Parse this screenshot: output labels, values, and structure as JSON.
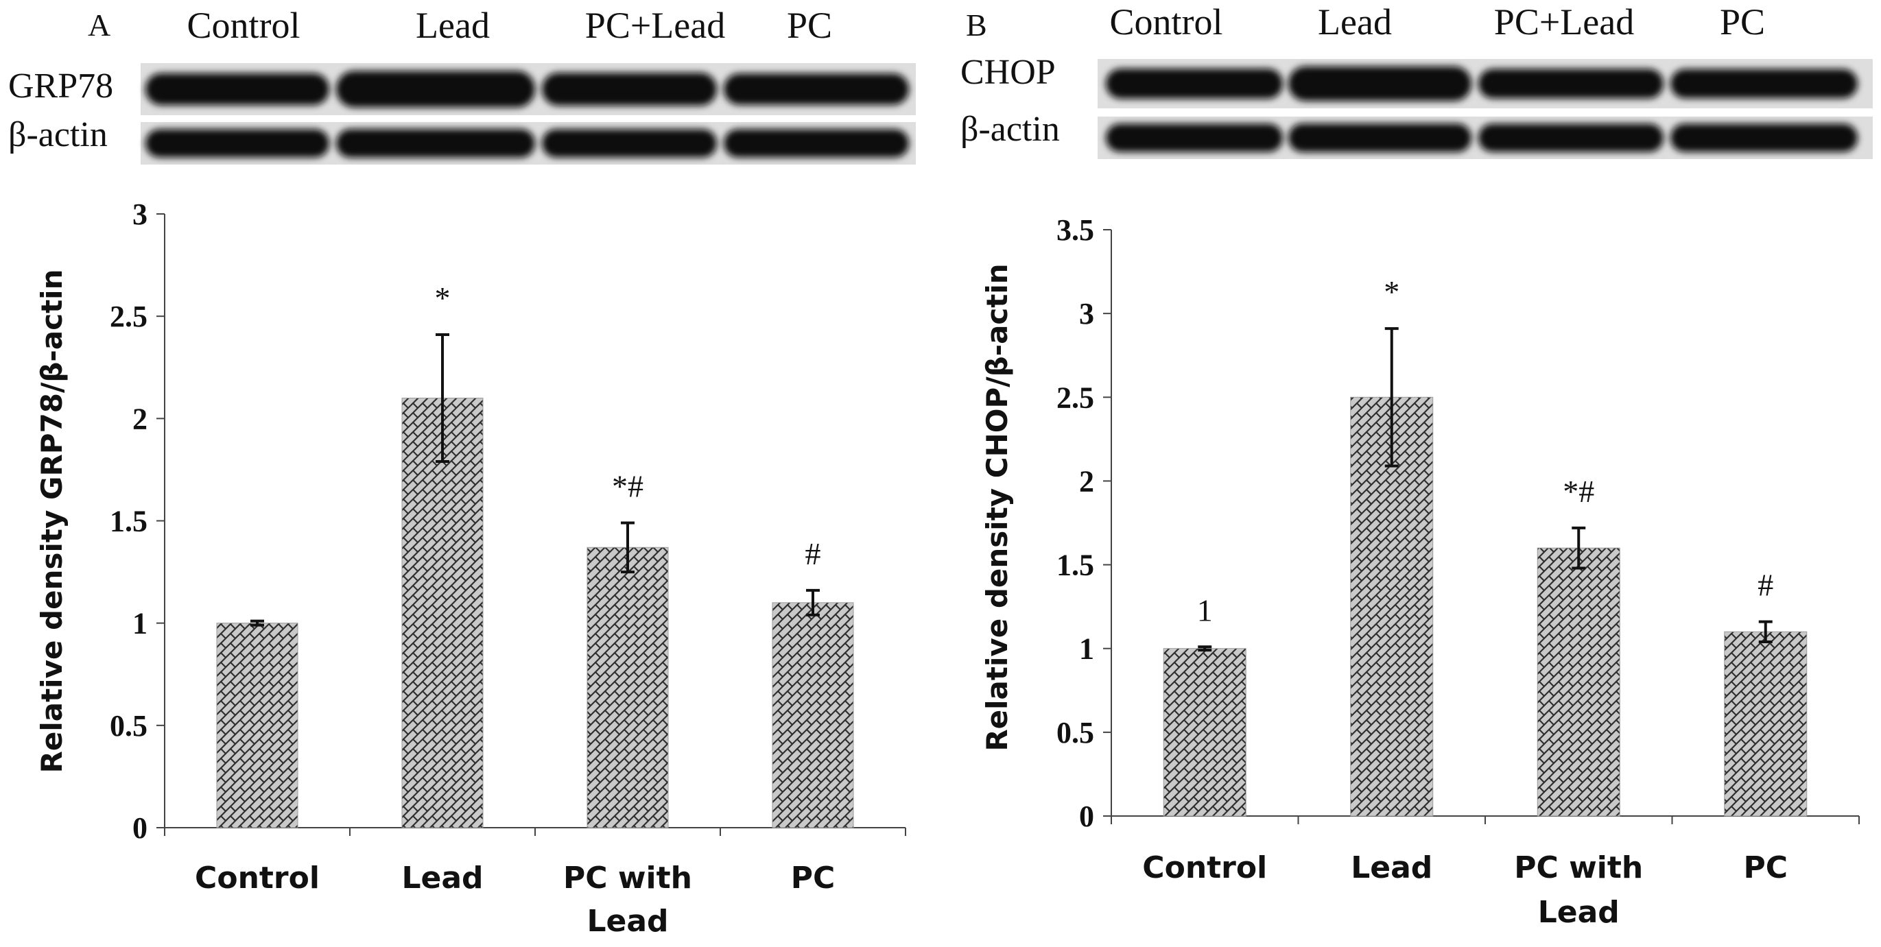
{
  "chart_data": [
    {
      "type": "bar",
      "panel_label": "A",
      "blot": {
        "lanes": [
          "Control",
          "Lead",
          "PC+Lead",
          "PC"
        ],
        "rows": [
          {
            "label": "GRP78",
            "intensity": [
              0.75,
              1.0,
              0.8,
              0.72
            ]
          },
          {
            "label": "β-actin",
            "intensity": [
              0.9,
              0.92,
              0.9,
              0.9
            ]
          }
        ]
      },
      "categories": [
        "Control",
        "Lead",
        "PC with Lead",
        "PC"
      ],
      "values": [
        1.0,
        2.1,
        1.37,
        1.1
      ],
      "errors": [
        0.01,
        0.31,
        0.12,
        0.06
      ],
      "annotations": [
        "",
        "*",
        "*#",
        "#"
      ],
      "ylabel": "Relative density GRP78/β-actin",
      "ylim": [
        0,
        3
      ],
      "yticks": [
        "0",
        "0.5",
        "1",
        "1.5",
        "2",
        "2.5",
        "3"
      ],
      "bar_fill": "crosshatch gray"
    },
    {
      "type": "bar",
      "panel_label": "B",
      "blot": {
        "lanes": [
          "Control",
          "Lead",
          "PC+Lead",
          "PC"
        ],
        "rows": [
          {
            "label": "CHOP",
            "intensity": [
              0.75,
              1.0,
              0.72,
              0.7
            ]
          },
          {
            "label": "β-actin",
            "intensity": [
              0.9,
              0.92,
              0.9,
              0.9
            ]
          }
        ]
      },
      "categories": [
        "Control",
        "Lead",
        "PC with Lead",
        "PC"
      ],
      "values": [
        1.0,
        2.5,
        1.6,
        1.1
      ],
      "errors": [
        0.01,
        0.41,
        0.12,
        0.06
      ],
      "annotations": [
        "1",
        "*",
        "*#",
        "#"
      ],
      "ylabel": "Relative density CHOP/β-actin",
      "ylim": [
        0,
        3.5
      ],
      "yticks": [
        "0",
        "0.5",
        "1",
        "1.5",
        "2",
        "2.5",
        "3",
        "3.5"
      ],
      "bar_fill": "crosshatch gray"
    }
  ]
}
